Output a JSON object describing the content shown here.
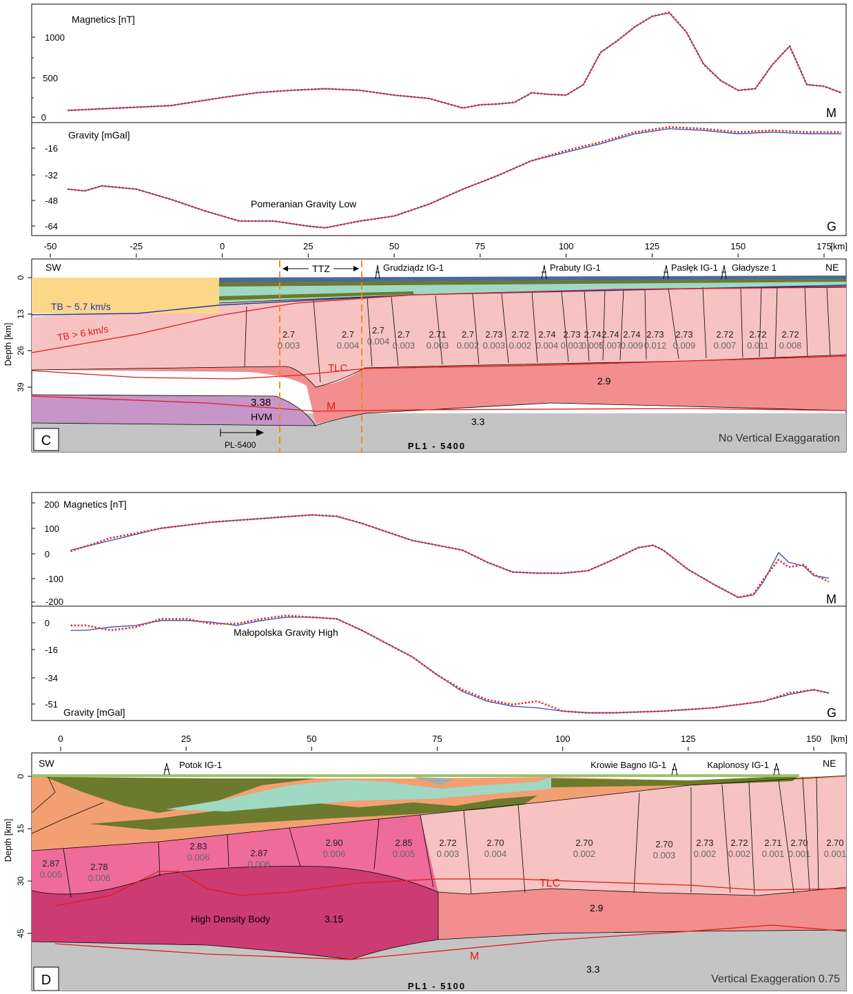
{
  "palette": {
    "curve_observed": "#e8282a",
    "curve_calculated": "#2a4fb5",
    "tb_blue": "#2333a0",
    "boundary_red": "#e21b1b",
    "ttz_orange": "#f08a1a",
    "sediment_yellow": "#fdd789",
    "crust_upper": "#f6c2c2",
    "crust_lower": "#f28e8e",
    "hvm_purple": "#c795c7",
    "mantle_grey": "#c4c4c4",
    "hdb_magenta": "#cc3b72",
    "mid_crust_pink": "#ee6b9a",
    "sed_orange": "#f2a072",
    "sed_olive": "#6b7a2d",
    "sed_teal": "#9fd9c4"
  },
  "panel_c": {
    "magnetics": {
      "label": "Magnetics [nT]",
      "ticks": [
        "1000",
        "500",
        "0"
      ],
      "tag": "M",
      "chart_data": {
        "type": "line",
        "xlabel": "[km]",
        "ylabel": "Magnetics [nT]",
        "xlim": [
          -50,
          185
        ],
        "ylim": [
          -20,
          1350
        ],
        "series": [
          {
            "name": "observed",
            "x": [
              -45,
              -30,
              -15,
              0,
              10,
              20,
              30,
              40,
              50,
              60,
              65,
              70,
              75,
              80,
              85,
              90,
              95,
              100,
              105,
              110,
              115,
              120,
              125,
              130,
              135,
              140,
              145,
              150,
              155,
              160,
              165,
              170,
              175,
              180
            ],
            "y": [
              80,
              110,
              140,
              240,
              300,
              330,
              350,
              330,
              270,
              230,
              170,
              110,
              150,
              160,
              180,
              300,
              280,
              270,
              400,
              800,
              950,
              1120,
              1250,
              1300,
              1050,
              650,
              450,
              330,
              350,
              650,
              880,
              400,
              380,
              300
            ]
          },
          {
            "name": "calculated",
            "x": [
              -45,
              -30,
              -15,
              0,
              10,
              20,
              30,
              40,
              50,
              60,
              65,
              70,
              75,
              80,
              85,
              90,
              95,
              100,
              105,
              110,
              115,
              120,
              125,
              130,
              135,
              140,
              145,
              150,
              155,
              160,
              165,
              170,
              175,
              180
            ],
            "y": [
              80,
              110,
              140,
              240,
              300,
              330,
              350,
              330,
              270,
              230,
              170,
              110,
              150,
              160,
              180,
              300,
              280,
              270,
              400,
              800,
              950,
              1120,
              1250,
              1290,
              1050,
              660,
              450,
              330,
              350,
              650,
              880,
              400,
              380,
              300
            ]
          }
        ]
      }
    },
    "gravity": {
      "label": "Gravity [mGal]",
      "ticks": [
        "-16",
        "-32",
        "-48",
        "-64"
      ],
      "tag": "G",
      "annotation": "Pomeranian Gravity Low",
      "chart_data": {
        "type": "line",
        "xlabel": "[km]",
        "ylabel": "Gravity [mGal]",
        "xlim": [
          -50,
          185
        ],
        "ylim": [
          -68,
          -4
        ],
        "series": [
          {
            "name": "observed",
            "x": [
              -45,
              -40,
              -35,
              -25,
              -15,
              -5,
              5,
              15,
              25,
              30,
              40,
              50,
              60,
              70,
              80,
              90,
              100,
              110,
              120,
              130,
              140,
              150,
              160,
              170,
              180
            ],
            "y": [
              -42,
              -43,
              -40,
              -42,
              -48,
              -55,
              -61,
              -61,
              -64,
              -65,
              -61,
              -58,
              -51,
              -42,
              -34,
              -25,
              -19,
              -14,
              -8,
              -5,
              -6,
              -8,
              -7,
              -8,
              -8
            ]
          },
          {
            "name": "calculated",
            "x": [
              -45,
              -40,
              -35,
              -25,
              -15,
              -5,
              5,
              15,
              25,
              30,
              40,
              50,
              60,
              70,
              80,
              90,
              100,
              110,
              120,
              130,
              140,
              150,
              160,
              170,
              180
            ],
            "y": [
              -42,
              -43,
              -40,
              -42,
              -48,
              -55,
              -61,
              -61,
              -64,
              -65,
              -61,
              -58,
              -51,
              -42,
              -34,
              -25,
              -20,
              -15,
              -9,
              -6,
              -7,
              -9,
              -8,
              -9,
              -9
            ]
          }
        ]
      }
    },
    "x_axis": {
      "ticks": [
        "-50",
        "-25",
        "0",
        "25",
        "50",
        "75",
        "100",
        "125",
        "150",
        "175"
      ],
      "unit": "[km]"
    },
    "section": {
      "letter": "C",
      "left_label": "SW",
      "right_label": "NE",
      "depth_label": "Depth [km]",
      "depth_ticks": [
        "0",
        "13",
        "26",
        "39"
      ],
      "ttz_label": "TTZ",
      "wells": [
        "Grudziądz IG-1",
        "Prabuty IG-1",
        "Pasłęk IG-1",
        "Gładysze 1"
      ],
      "tb_low_label": "TB ~ 5.7   km/s",
      "tb_high_label": "TB > 6 km/s",
      "tlc_label": "TLC",
      "moho_label": "M",
      "lower_crust_density": "2.9",
      "mantle_density": "3.3",
      "hvm_density": "3.38",
      "hvm_label": "HVM",
      "arrow_label": "PL-5400",
      "profile_name": "PL1 - 5400",
      "exaggeration_note": "No Vertical Exaggaration",
      "blocks": [
        {
          "d": "2.7",
          "s": "0.003"
        },
        {
          "d": "2.7",
          "s": "0.004"
        },
        {
          "d": "2.7",
          "s": "0.004"
        },
        {
          "d": "2.7",
          "s": "0.003"
        },
        {
          "d": "2.71",
          "s": "0.003"
        },
        {
          "d": "2.7",
          "s": "0.002"
        },
        {
          "d": "2.73",
          "s": "0.003"
        },
        {
          "d": "2.72",
          "s": "0.002"
        },
        {
          "d": "2.74",
          "s": "0.004"
        },
        {
          "d": "2.73",
          "s": "0.003"
        },
        {
          "d": "2.74",
          "s": "0.005"
        },
        {
          "d": "2.74",
          "s": "0.007"
        },
        {
          "d": "2.74",
          "s": "0.009"
        },
        {
          "d": "2.73",
          "s": "0.012"
        },
        {
          "d": "2.73",
          "s": "0.009"
        },
        {
          "d": "2.72",
          "s": "0.007"
        },
        {
          "d": "2.72",
          "s": "0.011"
        },
        {
          "d": "2.72",
          "s": "0.008"
        }
      ]
    }
  },
  "panel_d": {
    "magnetics": {
      "label": "Magnetics [nT]",
      "ticks": [
        "200",
        "100",
        "0",
        "-100",
        "-200"
      ],
      "tag": "M",
      "chart_data": {
        "type": "line",
        "xlabel": "[km]",
        "ylabel": "Magnetics [nT]",
        "xlim": [
          -2,
          155
        ],
        "ylim": [
          -205,
          240
        ],
        "series": [
          {
            "name": "observed",
            "x": [
              2,
              10,
              20,
              30,
              40,
              50,
              55,
              60,
              70,
              80,
              85,
              90,
              95,
              100,
              105,
              110,
              115,
              118,
              120,
              125,
              130,
              135,
              138,
              140,
              143,
              145,
              148,
              150,
              153
            ],
            "y": [
              15,
              70,
              110,
              135,
              150,
              165,
              160,
              130,
              60,
              20,
              -30,
              -70,
              -75,
              -75,
              -65,
              -20,
              30,
              40,
              20,
              -60,
              -120,
              -175,
              -160,
              -100,
              -20,
              -50,
              -40,
              -80,
              -110
            ]
          },
          {
            "name": "calculated",
            "x": [
              2,
              10,
              20,
              30,
              40,
              50,
              55,
              60,
              70,
              80,
              85,
              90,
              95,
              100,
              105,
              110,
              115,
              118,
              120,
              125,
              130,
              135,
              138,
              140,
              143,
              145,
              148,
              150,
              153
            ],
            "y": [
              20,
              60,
              110,
              135,
              150,
              165,
              158,
              130,
              60,
              20,
              -30,
              -70,
              -75,
              -75,
              -65,
              -20,
              30,
              40,
              20,
              -60,
              -120,
              -175,
              -165,
              -110,
              10,
              -30,
              -45,
              -85,
              -95
            ]
          }
        ]
      }
    },
    "gravity": {
      "label": "Gravity [mGal]",
      "ticks": [
        "0",
        "-16",
        "-34",
        "-51"
      ],
      "tag": "G",
      "annotation": "Małopolska Gravity High",
      "chart_data": {
        "type": "line",
        "xlabel": "[km]",
        "ylabel": "Gravity [mGal]",
        "xlim": [
          -2,
          155
        ],
        "ylim": [
          -58,
          8
        ],
        "series": [
          {
            "name": "observed",
            "x": [
              2,
              5,
              10,
              15,
              20,
              25,
              30,
              35,
              40,
              45,
              50,
              55,
              60,
              65,
              70,
              75,
              80,
              85,
              90,
              95,
              100,
              105,
              110,
              120,
              130,
              140,
              145,
              150,
              153
            ],
            "y": [
              -2,
              -2,
              -5,
              -3,
              2,
              2,
              -1,
              -1,
              2,
              4,
              3,
              2,
              -5,
              -13,
              -21,
              -32,
              -41,
              -47,
              -50,
              -48,
              -54,
              -55,
              -55,
              -54,
              -52,
              -48,
              -43,
              -41,
              -43
            ]
          },
          {
            "name": "calculated",
            "x": [
              2,
              5,
              10,
              15,
              20,
              25,
              30,
              35,
              40,
              45,
              50,
              55,
              60,
              65,
              70,
              75,
              80,
              85,
              90,
              95,
              100,
              105,
              110,
              120,
              130,
              140,
              145,
              150,
              153
            ],
            "y": [
              -5,
              -5,
              -3,
              -2,
              1,
              1,
              0,
              -2,
              1,
              3,
              3,
              2,
              -5,
              -13,
              -21,
              -32,
              -42,
              -48,
              -51,
              -52,
              -54,
              -55,
              -55,
              -54,
              -52,
              -48,
              -44,
              -41,
              -43
            ]
          }
        ]
      }
    },
    "x_axis": {
      "ticks": [
        "0",
        "25",
        "50",
        "75",
        "100",
        "125",
        "150"
      ],
      "unit": "[km]"
    },
    "section": {
      "letter": "D",
      "left_label": "SW",
      "right_label": "NE",
      "depth_label": "Depth [km]",
      "depth_ticks": [
        "0",
        "15",
        "30",
        "45"
      ],
      "wells": [
        "Potok IG-1",
        "Krowie Bagno IG-1",
        "Kaplonosy IG-1"
      ],
      "tlc_label": "TLC",
      "moho_label": "M",
      "hdb_label": "High Density Body",
      "hdb_density": "3.15",
      "lower_crust_density": "2.9",
      "mantle_density": "3.3",
      "profile_name": "PL1 - 5100",
      "exaggeration_note": "Vertical Exaggeration 0.75",
      "blocks": [
        {
          "d": "2.87",
          "s": "0.005"
        },
        {
          "d": "2.78",
          "s": "0.006"
        },
        {
          "d": "2.83",
          "s": "0.006"
        },
        {
          "d": "2.87",
          "s": "0.006"
        },
        {
          "d": "2.90",
          "s": "0.006"
        },
        {
          "d": "2.85",
          "s": "0.005"
        },
        {
          "d": "2.72",
          "s": "0.003"
        },
        {
          "d": "2.70",
          "s": "0.004"
        },
        {
          "d": "2.70",
          "s": "0.002"
        },
        {
          "d": "2.70",
          "s": "0.003"
        },
        {
          "d": "2.73",
          "s": "0.002"
        },
        {
          "d": "2.72",
          "s": "0.002"
        },
        {
          "d": "2.71",
          "s": "0.001"
        },
        {
          "d": "2.70",
          "s": "0.001"
        },
        {
          "d": "2.70",
          "s": "0.001"
        }
      ]
    }
  }
}
